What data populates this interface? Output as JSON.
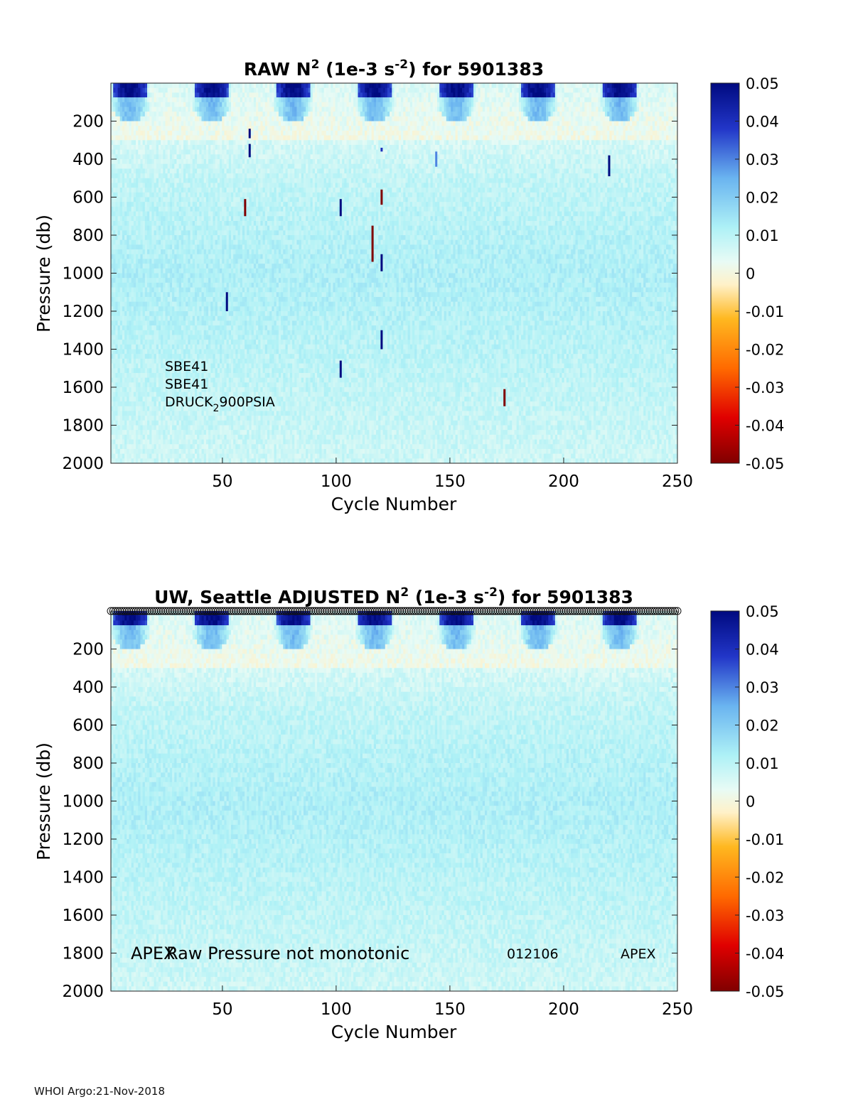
{
  "footer": "WHOI Argo:21-Nov-2018",
  "colorbar": {
    "ticks": [
      "0.05",
      "0.04",
      "0.03",
      "0.02",
      "0.01",
      "0",
      "-0.01",
      "-0.02",
      "-0.03",
      "-0.04",
      "-0.05"
    ],
    "range": [
      -0.05,
      0.05
    ]
  },
  "chart_data": [
    {
      "type": "heatmap",
      "title_parts": [
        "RAW N",
        "2",
        " (1e-3 s",
        "-2",
        ") for 5901383"
      ],
      "xlabel": "Cycle Number",
      "ylabel": "Pressure (db)",
      "xlim": [
        1,
        250
      ],
      "ylim": [
        2000,
        0
      ],
      "xticks": [
        "50",
        "100",
        "150",
        "200",
        "250"
      ],
      "yticks": [
        "200",
        "400",
        "600",
        "800",
        "1000",
        "1200",
        "1400",
        "1600",
        "1800",
        "2000"
      ],
      "annotations": [
        {
          "text": "SBE41"
        },
        {
          "text": "SBE41"
        },
        {
          "parts": [
            "DRUCK",
            "2",
            "900PSIA"
          ]
        }
      ],
      "spikes": [
        {
          "cycle": 62,
          "p_top": 240,
          "p_bottom": 290,
          "value": 0.05
        },
        {
          "cycle": 62,
          "p_top": 320,
          "p_bottom": 390,
          "value": 0.05
        },
        {
          "cycle": 60,
          "p_top": 610,
          "p_bottom": 700,
          "value": -0.05
        },
        {
          "cycle": 52,
          "p_top": 1100,
          "p_bottom": 1200,
          "value": 0.05
        },
        {
          "cycle": 102,
          "p_top": 610,
          "p_bottom": 700,
          "value": 0.05
        },
        {
          "cycle": 102,
          "p_top": 1460,
          "p_bottom": 1550,
          "value": 0.05
        },
        {
          "cycle": 116,
          "p_top": 750,
          "p_bottom": 940,
          "value": -0.05
        },
        {
          "cycle": 120,
          "p_top": 560,
          "p_bottom": 640,
          "value": -0.05
        },
        {
          "cycle": 120,
          "p_top": 900,
          "p_bottom": 990,
          "value": 0.05
        },
        {
          "cycle": 120,
          "p_top": 1300,
          "p_bottom": 1400,
          "value": 0.05
        },
        {
          "cycle": 120,
          "p_top": 340,
          "p_bottom": 360,
          "value": 0.04
        },
        {
          "cycle": 144,
          "p_top": 360,
          "p_bottom": 440,
          "value": 0.03
        },
        {
          "cycle": 174,
          "p_top": 1610,
          "p_bottom": 1700,
          "value": -0.05
        },
        {
          "cycle": 220,
          "p_top": 380,
          "p_bottom": 490,
          "value": 0.05
        }
      ]
    },
    {
      "type": "heatmap",
      "title_parts": [
        "UW, Seattle  ADJUSTED N",
        "2",
        " (1e-3 s",
        "-2",
        ") for 5901383"
      ],
      "xlabel": "Cycle Number",
      "ylabel": "Pressure (db)",
      "xlim": [
        1,
        250
      ],
      "ylim": [
        2000,
        0
      ],
      "xticks": [
        "50",
        "100",
        "150",
        "200",
        "250"
      ],
      "yticks": [
        "200",
        "400",
        "600",
        "800",
        "1000",
        "1200",
        "1400",
        "1600",
        "1800",
        "2000"
      ],
      "annotations": [
        {
          "text": "APEX"
        },
        {
          "text": "Raw Pressure not monotonic"
        },
        {
          "text": "012106"
        },
        {
          "text": "APEX"
        }
      ],
      "marker_row": "circles at p=0 for every cycle",
      "spikes": []
    }
  ]
}
